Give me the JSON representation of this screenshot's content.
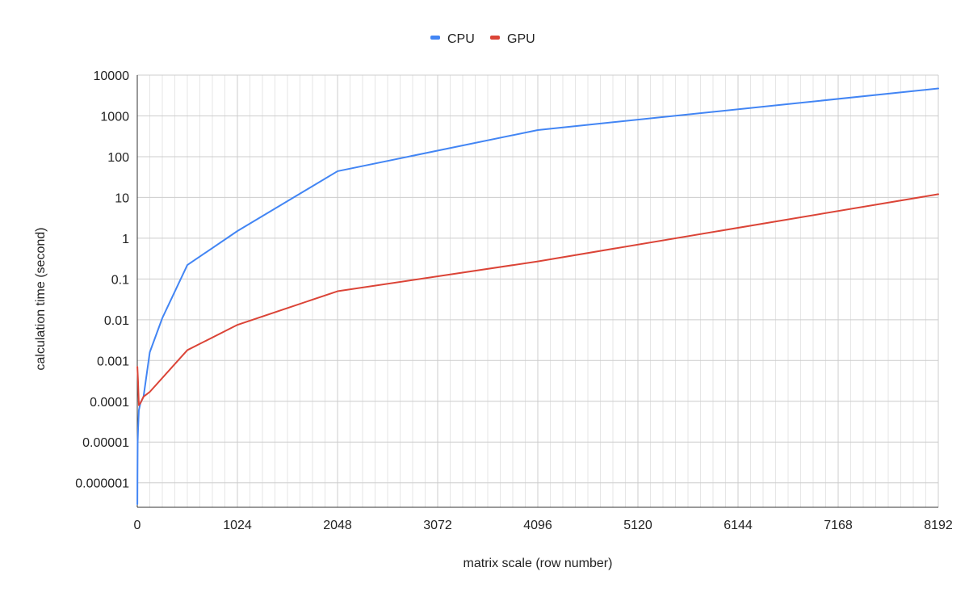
{
  "chart_data": {
    "type": "line",
    "xlabel": "matrix scale (row number)",
    "ylabel": "calculation time (second)",
    "x_scale": "linear",
    "y_scale": "log",
    "xlim": [
      0,
      8192
    ],
    "ylim_exponent": [
      -6.6,
      4
    ],
    "x_ticks": [
      0,
      1024,
      2048,
      3072,
      4096,
      5120,
      6144,
      7168,
      8192
    ],
    "x_tick_labels": [
      "0",
      "1024",
      "2048",
      "3072",
      "4096",
      "5120",
      "6144",
      "7168",
      "8192"
    ],
    "y_ticks": [
      1e-06,
      1e-05,
      0.0001,
      0.001,
      0.01,
      0.1,
      1,
      10,
      100,
      1000,
      10000
    ],
    "y_tick_labels": [
      "0.000001",
      "0.00001",
      "0.0001",
      "0.001",
      "0.01",
      "0.1",
      "1",
      "10",
      "100",
      "1000",
      "10000"
    ],
    "grid": true,
    "legend_position": "top-center",
    "series": [
      {
        "name": "CPU",
        "color": "#4285f4",
        "points": [
          [
            1,
            3e-07
          ],
          [
            2,
            1.5e-06
          ],
          [
            4,
            1e-05
          ],
          [
            8,
            2e-05
          ],
          [
            16,
            6e-05
          ],
          [
            32,
            9e-05
          ],
          [
            64,
            0.00013
          ],
          [
            128,
            0.0016
          ],
          [
            256,
            0.011
          ],
          [
            512,
            0.22
          ],
          [
            1024,
            1.5
          ],
          [
            2048,
            44
          ],
          [
            4096,
            450
          ],
          [
            8192,
            4700
          ]
        ]
      },
      {
        "name": "GPU",
        "color": "#db4437",
        "points": [
          [
            1,
            0.0007
          ],
          [
            8,
            0.0003
          ],
          [
            16,
            8e-05
          ],
          [
            32,
            9e-05
          ],
          [
            64,
            0.00013
          ],
          [
            128,
            0.00017
          ],
          [
            512,
            0.0018
          ],
          [
            1024,
            0.0075
          ],
          [
            2048,
            0.05
          ],
          [
            4096,
            0.27
          ],
          [
            8192,
            12
          ]
        ]
      }
    ]
  }
}
